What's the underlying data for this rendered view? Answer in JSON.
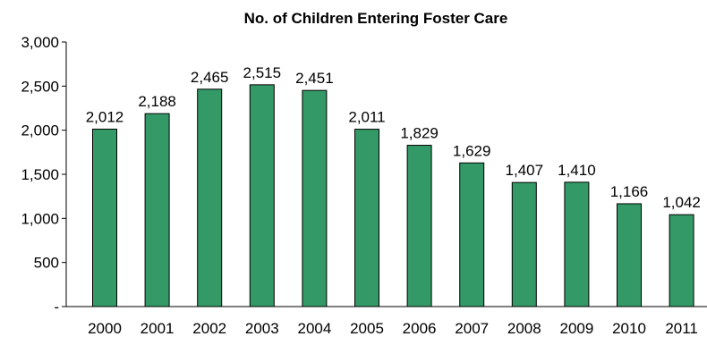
{
  "chart_data": {
    "type": "bar",
    "title": "No. of Children Entering Foster Care",
    "xlabel": "",
    "ylabel": "",
    "categories": [
      "2000",
      "2001",
      "2002",
      "2003",
      "2004",
      "2005",
      "2006",
      "2007",
      "2008",
      "2009",
      "2010",
      "2011"
    ],
    "values": [
      2012,
      2188,
      2465,
      2515,
      2451,
      2011,
      1829,
      1629,
      1407,
      1410,
      1166,
      1042
    ],
    "value_labels": [
      "2,012",
      "2,188",
      "2,465",
      "2,515",
      "2,451",
      "2,011",
      "1,829",
      "1,629",
      "1,407",
      "1,410",
      "1,166",
      "1,042"
    ],
    "ylim": [
      0,
      3000
    ],
    "yticks": [
      0,
      500,
      1000,
      1500,
      2000,
      2500,
      3000
    ],
    "ytick_labels": [
      "-",
      "500",
      "1,000",
      "1,500",
      "2,000",
      "2,500",
      "3,000"
    ],
    "bar_color": "#339966",
    "bar_edge_color": "#000000",
    "grid": false,
    "legend": "none"
  }
}
